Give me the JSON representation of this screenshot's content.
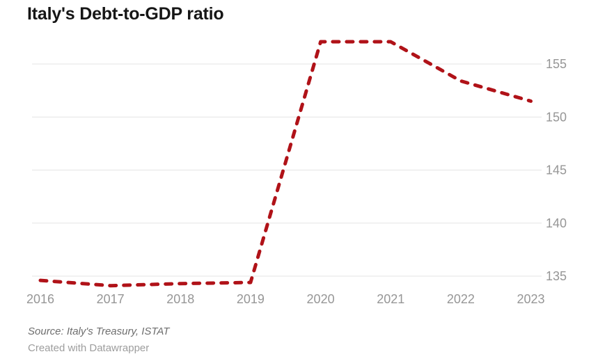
{
  "title": "Italy's Debt-to-GDP ratio",
  "footer": {
    "source": "Source: Italy's Treasury, ISTAT",
    "created": "Created with Datawrapper"
  },
  "chart_data": {
    "type": "line",
    "title": "Italy's Debt-to-GDP ratio",
    "x": [
      2016,
      2017,
      2018,
      2019,
      2020,
      2021,
      2022,
      2023
    ],
    "series": [
      {
        "name": "Debt-to-GDP ratio",
        "values": [
          134.6,
          134.1,
          134.3,
          134.4,
          157.1,
          157.1,
          153.4,
          151.5
        ]
      }
    ],
    "y_ticks": [
      135,
      140,
      145,
      150,
      155
    ],
    "ylim": [
      133.6,
      158.6
    ],
    "xlabel": "",
    "ylabel": "",
    "legend": "none",
    "grid": "horizontal",
    "y_axis_side": "right",
    "line_style": "dashed",
    "line_color": "#b01218",
    "grid_color": "#e4e4e4",
    "axis_label_color": "#969696"
  }
}
